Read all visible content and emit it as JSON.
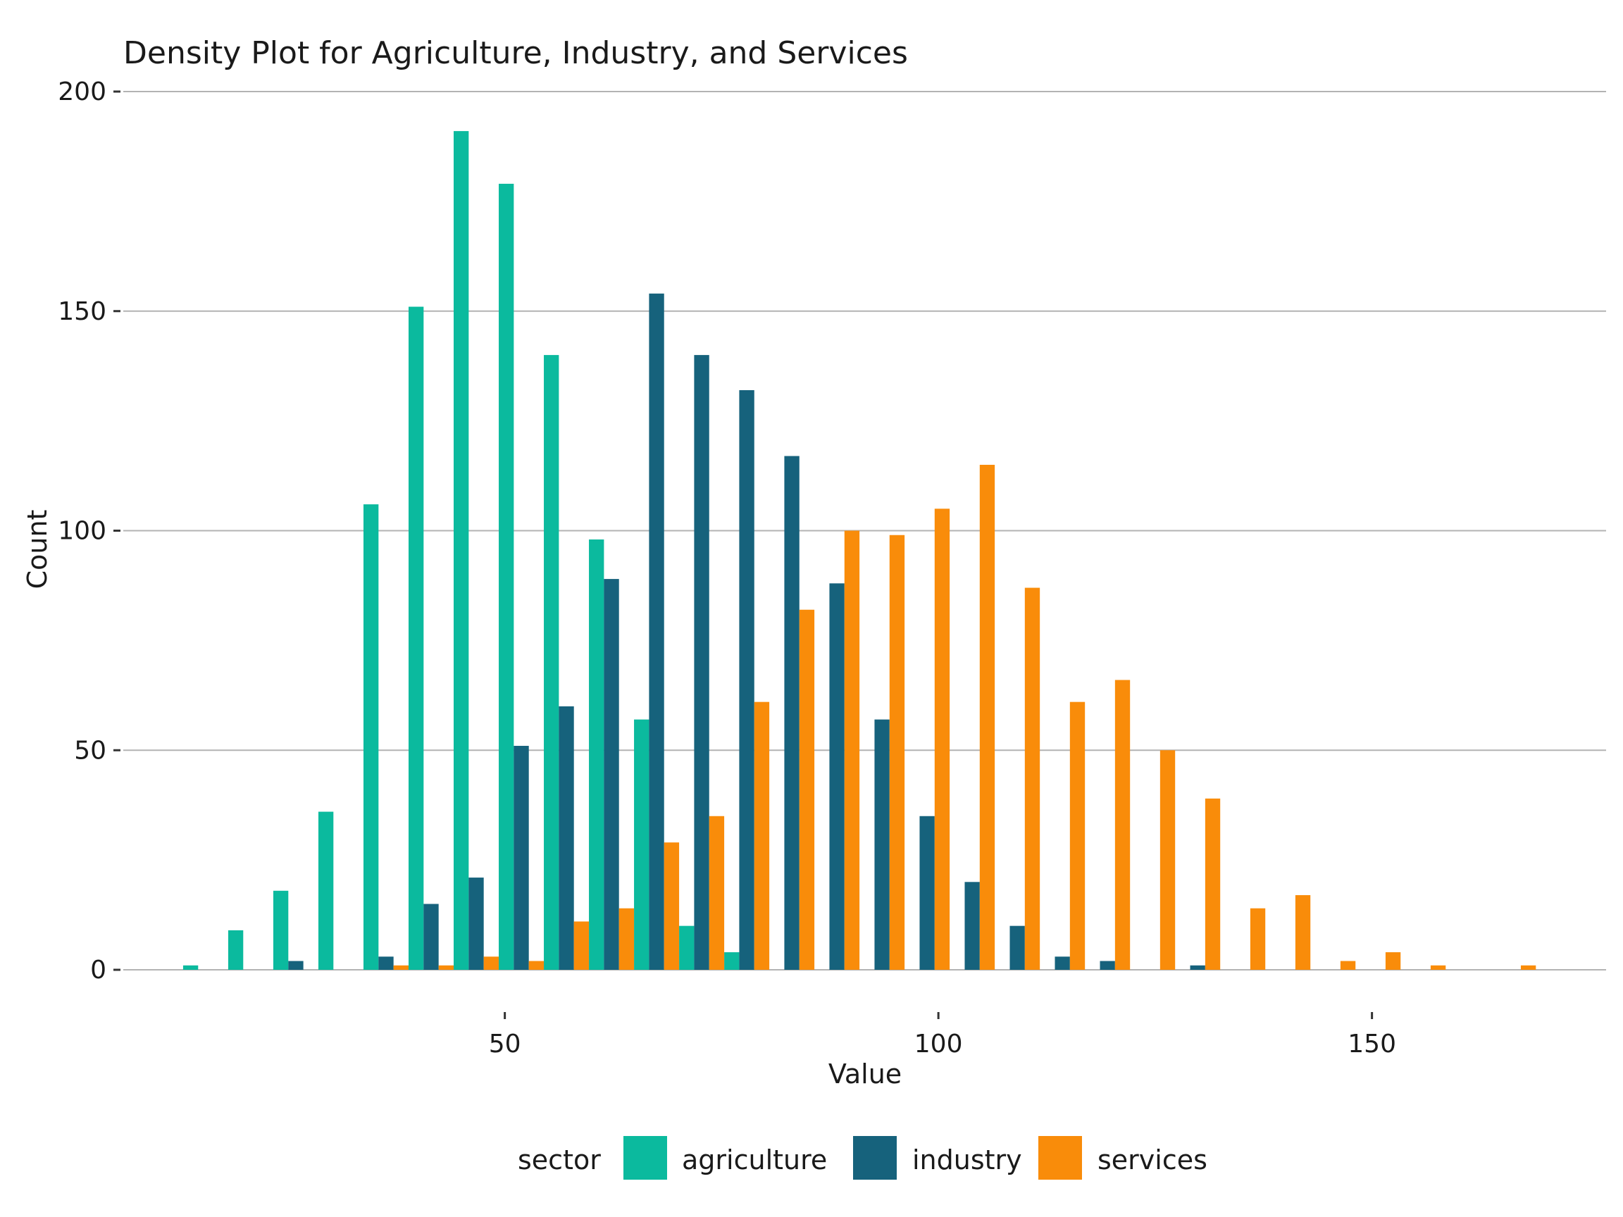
{
  "chart_data": {
    "type": "bar",
    "title": "Density Plot for Agriculture, Industry, and Services",
    "xlabel": "Value",
    "ylabel": "Count",
    "xlim": [
      6,
      177
    ],
    "ylim": [
      0,
      200
    ],
    "xticks": [
      50,
      100,
      150
    ],
    "yticks": [
      0,
      50,
      100,
      150,
      200
    ],
    "bin_width": 5.2,
    "grid": "horizontal",
    "legend": {
      "position": "bottom",
      "title": "sector"
    },
    "bin_centers": [
      15.5,
      20.7,
      25.9,
      31.1,
      36.3,
      41.5,
      46.7,
      51.9,
      57.1,
      62.3,
      67.5,
      72.7,
      77.9,
      83.1,
      88.3,
      93.5,
      98.7,
      103.9,
      109.1,
      114.3,
      119.5,
      124.7,
      129.9,
      135.1,
      140.3,
      145.5,
      150.7,
      155.9,
      161.1,
      166.3,
      171.5
    ],
    "series": [
      {
        "name": "agriculture",
        "color": "#0BBA9E",
        "values": [
          1,
          9,
          18,
          36,
          106,
          151,
          191,
          179,
          140,
          98,
          57,
          10,
          4,
          0,
          0,
          0,
          0,
          0,
          0,
          0,
          0,
          0,
          0,
          0,
          0,
          0,
          0,
          0,
          0,
          0,
          0
        ]
      },
      {
        "name": "industry",
        "color": "#16627C",
        "values": [
          0,
          0,
          2,
          0,
          3,
          15,
          21,
          51,
          60,
          89,
          154,
          140,
          132,
          117,
          88,
          57,
          35,
          20,
          10,
          3,
          2,
          0,
          1,
          0,
          0,
          0,
          0,
          0,
          0,
          0,
          0
        ]
      },
      {
        "name": "services",
        "color": "#F98C0A",
        "values": [
          0,
          0,
          0,
          0,
          1,
          1,
          3,
          2,
          11,
          14,
          29,
          35,
          61,
          82,
          100,
          99,
          105,
          115,
          87,
          61,
          66,
          50,
          39,
          14,
          17,
          2,
          4,
          1,
          0,
          1,
          0
        ]
      }
    ]
  }
}
